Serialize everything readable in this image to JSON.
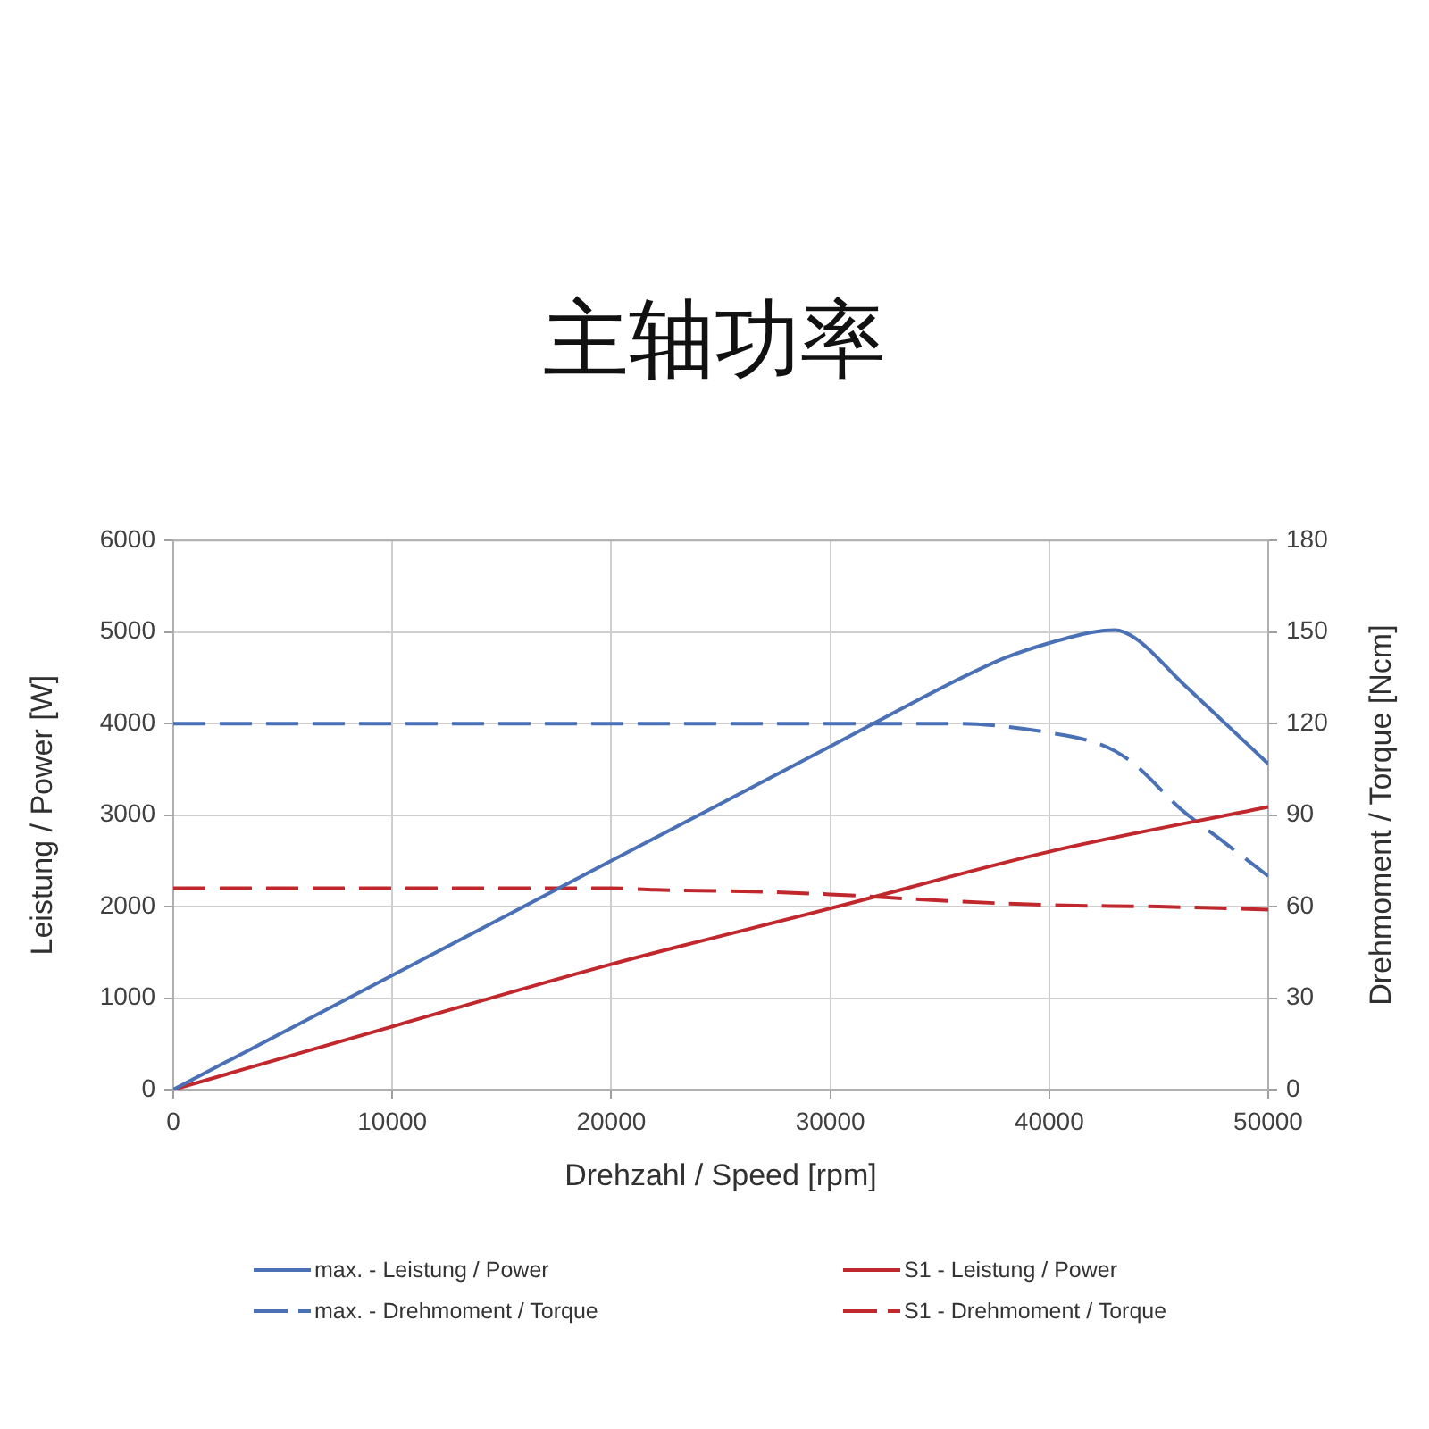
{
  "chart_data": {
    "type": "line",
    "title": "主轴功率",
    "xlabel": "Drehzahl / Speed [rpm]",
    "ylabel": "Leistung / Power [W]",
    "y2label": "Drehmoment / Torque [Ncm]",
    "xlim": [
      0,
      50000
    ],
    "xticks": [
      0,
      10000,
      20000,
      30000,
      40000,
      50000
    ],
    "ylim": [
      0,
      6000
    ],
    "yticks": [
      0,
      1000,
      2000,
      3000,
      4000,
      5000,
      6000
    ],
    "y2lim": [
      0,
      180
    ],
    "y2ticks": [
      0,
      30,
      60,
      90,
      120,
      150,
      180
    ],
    "grid": true,
    "legend": "bottom",
    "series": [
      {
        "name": "max. - Leistung / Power",
        "color": "#4a70b5",
        "line_style": "solid",
        "x": [
          0,
          10000,
          20000,
          30000,
          36000,
          38000,
          40000,
          42000,
          43000,
          44000,
          46000,
          48000,
          50000
        ],
        "values": [
          0,
          1250,
          2500,
          3750,
          4500,
          4720,
          4880,
          5000,
          5020,
          4920,
          4460,
          4010,
          3560
        ]
      },
      {
        "name": "S1 - Leistung / Power",
        "color": "#c0282d",
        "line_style": "solid",
        "x": [
          0,
          10000,
          20000,
          30000,
          40000,
          50000
        ],
        "values": [
          0,
          690,
          1370,
          1980,
          2600,
          3090
        ]
      },
      {
        "name": "max. - Drehmoment / Torque",
        "color": "#4a70b5",
        "line_style": "dashed",
        "axis": "y2",
        "x": [
          0,
          20000,
          36000,
          38000,
          40000,
          42000,
          43000,
          44000,
          46000,
          48000,
          50000
        ],
        "values": [
          120,
          120,
          120,
          119,
          117,
          114,
          111,
          106,
          92,
          81,
          70
        ]
      },
      {
        "name": "S1 - Drehmoment / Torque",
        "color": "#c0282d",
        "line_style": "dashed",
        "axis": "y2",
        "x": [
          0,
          20000,
          22000,
          26000,
          30000,
          35000,
          40000,
          45000,
          50000
        ],
        "values": [
          66,
          66,
          65.5,
          65,
          64,
          62,
          60.5,
          60,
          59
        ]
      }
    ]
  }
}
